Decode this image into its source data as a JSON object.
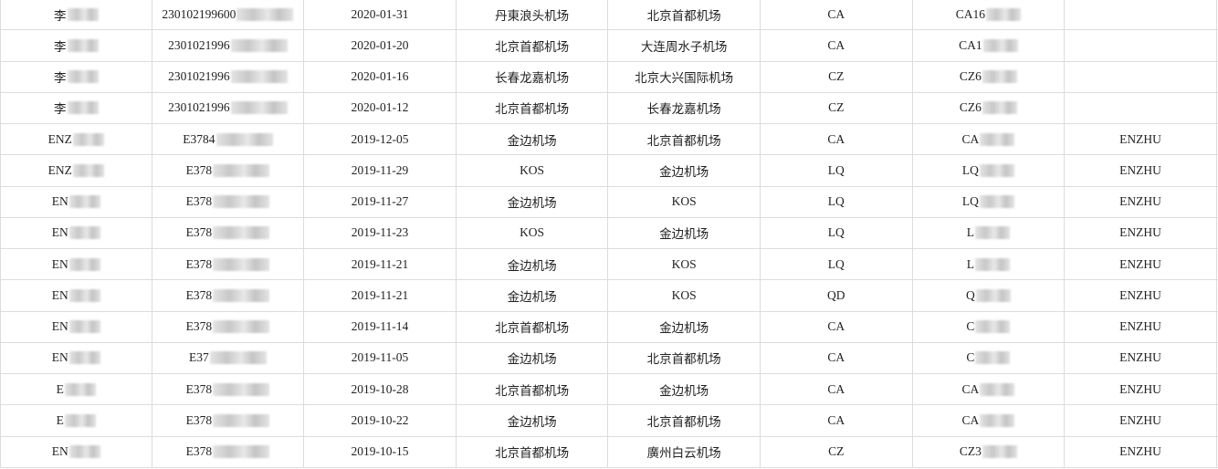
{
  "rows": [
    [
      "李",
      "230102199600",
      "2020-01-31",
      "丹東浪头机场",
      "北京首都机场",
      "CA",
      "CA16",
      ""
    ],
    [
      "李",
      "2301021996",
      "2020-01-20",
      "北京首都机场",
      "大连周水子机场",
      "CA",
      "CA1",
      ""
    ],
    [
      "李",
      "2301021996",
      "2020-01-16",
      "长春龙嘉机场",
      "北京大兴国际机场",
      "CZ",
      "CZ6",
      ""
    ],
    [
      "李",
      "2301021996",
      "2020-01-12",
      "北京首都机场",
      "长春龙嘉机场",
      "CZ",
      "CZ6",
      ""
    ],
    [
      "ENZ",
      "E3784",
      "2019-12-05",
      "金边机场",
      "北京首都机场",
      "CA",
      "CA",
      "ENZHU"
    ],
    [
      "ENZ",
      "E378",
      "2019-11-29",
      "KOS",
      "金边机场",
      "LQ",
      "LQ",
      "ENZHU"
    ],
    [
      "EN",
      "E378",
      "2019-11-27",
      "金边机场",
      "KOS",
      "LQ",
      "LQ",
      "ENZHU"
    ],
    [
      "EN",
      "E378",
      "2019-11-23",
      "KOS",
      "金边机场",
      "LQ",
      "L",
      "ENZHU"
    ],
    [
      "EN",
      "E378",
      "2019-11-21",
      "金边机场",
      "KOS",
      "LQ",
      "L",
      "ENZHU"
    ],
    [
      "EN",
      "E378",
      "2019-11-21",
      "金边机场",
      "KOS",
      "QD",
      "Q",
      "ENZHU"
    ],
    [
      "EN",
      "E378",
      "2019-11-14",
      "北京首都机场",
      "金边机场",
      "CA",
      "C",
      "ENZHU"
    ],
    [
      "EN",
      "E37",
      "2019-11-05",
      "金边机场",
      "北京首都机场",
      "CA",
      "C",
      "ENZHU"
    ],
    [
      "E",
      "E378",
      "2019-10-28",
      "北京首都机场",
      "金边机场",
      "CA",
      "CA",
      "ENZHU"
    ],
    [
      "E",
      "E378",
      "2019-10-22",
      "金边机场",
      "北京首都机场",
      "CA",
      "CA",
      "ENZHU"
    ],
    [
      "EN",
      "E378",
      "2019-10-15",
      "北京首都机场",
      "廣州白云机场",
      "CZ",
      "CZ3",
      "ENZHU"
    ]
  ],
  "blurred_columns": [
    0,
    1,
    6
  ]
}
